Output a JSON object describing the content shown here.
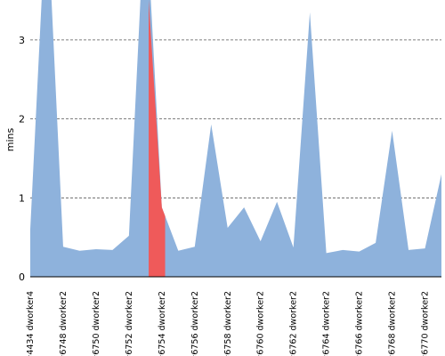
{
  "chart_data": {
    "type": "area",
    "ylabel": "mins",
    "ylim": [
      0,
      3.5
    ],
    "yticks": [
      0,
      1,
      2,
      3
    ],
    "grid": true,
    "colors": {
      "area": "#8eb2dc",
      "highlight": "#ef5a5a",
      "grid": "#555555"
    },
    "categories": [
      "#4434 dworker4",
      "",
      "#6748 dworker2",
      "",
      "#6750 dworker2",
      "",
      "#6752 dworker2",
      "",
      "#6754 dworker2",
      "",
      "#6756 dworker2",
      "",
      "#6758 dworker2",
      "",
      "#6760 dworker2",
      "",
      "#6762 dworker2",
      "",
      "#6764 dworker2",
      "",
      "#6766 dworker2",
      "",
      "#6768 dworker2",
      "",
      "#6770 dworker2",
      ""
    ],
    "series": [
      {
        "values": [
          0.6,
          4.8,
          0.38,
          0.33,
          0.35,
          0.34,
          0.52,
          4.8,
          0.88,
          0.33,
          0.38,
          1.93,
          0.62,
          0.88,
          0.45,
          0.95,
          0.37,
          3.35,
          0.3,
          0.34,
          0.32,
          0.43,
          1.85,
          0.34,
          0.36,
          1.3
        ]
      }
    ],
    "highlight_range": [
      7.2,
      8.2
    ]
  }
}
